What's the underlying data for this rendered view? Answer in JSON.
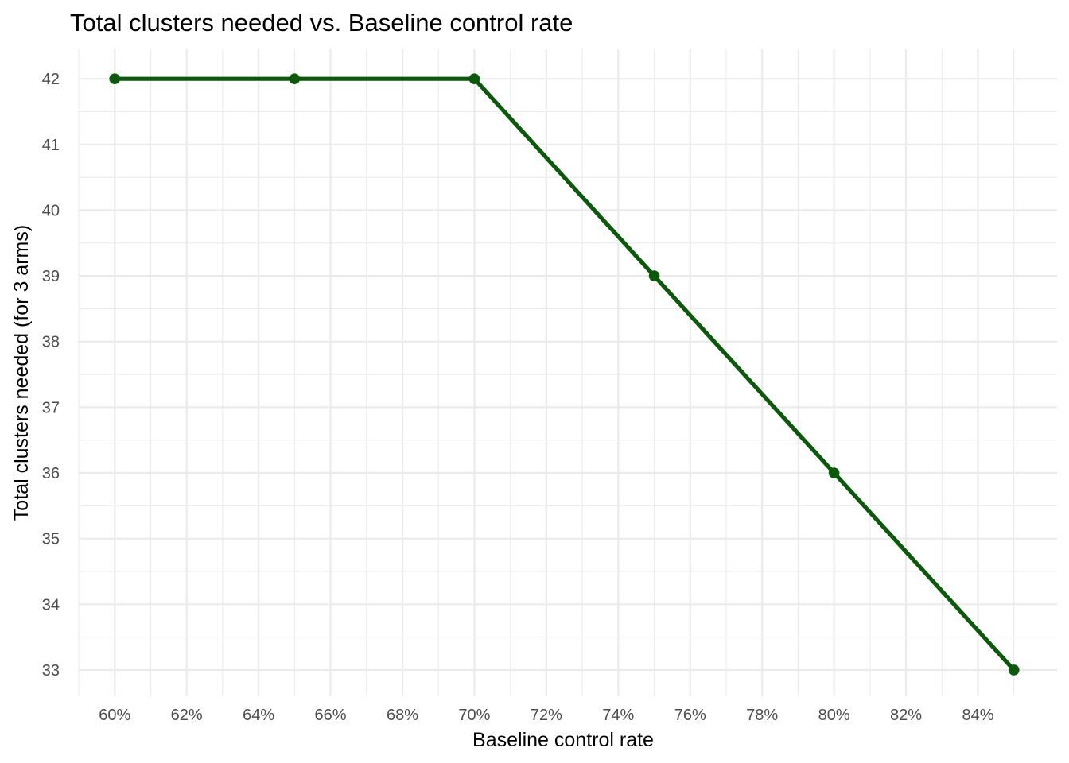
{
  "chart_data": {
    "type": "line",
    "title": "Total clusters needed vs. Baseline control rate",
    "xlabel": "Baseline control rate",
    "ylabel": "Total clusters needed (for 3 arms)",
    "x": [
      0.6,
      0.65,
      0.7,
      0.75,
      0.8,
      0.85
    ],
    "series": [
      {
        "values": [
          42,
          42,
          42,
          39,
          36,
          33
        ]
      }
    ],
    "xlim": [
      0.59,
      0.862
    ],
    "ylim": [
      32.6,
      42.45
    ],
    "x_ticks": [
      0.6,
      0.62,
      0.64,
      0.66,
      0.68,
      0.7,
      0.72,
      0.74,
      0.76,
      0.78,
      0.8,
      0.82,
      0.84
    ],
    "x_tick_labels": [
      "60%",
      "62%",
      "64%",
      "66%",
      "68%",
      "70%",
      "72%",
      "74%",
      "76%",
      "78%",
      "80%",
      "82%",
      "84%"
    ],
    "y_ticks": [
      33,
      34,
      35,
      36,
      37,
      38,
      39,
      40,
      41,
      42
    ],
    "y_tick_labels": [
      "33",
      "34",
      "35",
      "36",
      "37",
      "38",
      "39",
      "40",
      "41",
      "42"
    ],
    "grid": true,
    "line_color": "#0b5a0b",
    "point_color": "#0b5a0b"
  }
}
